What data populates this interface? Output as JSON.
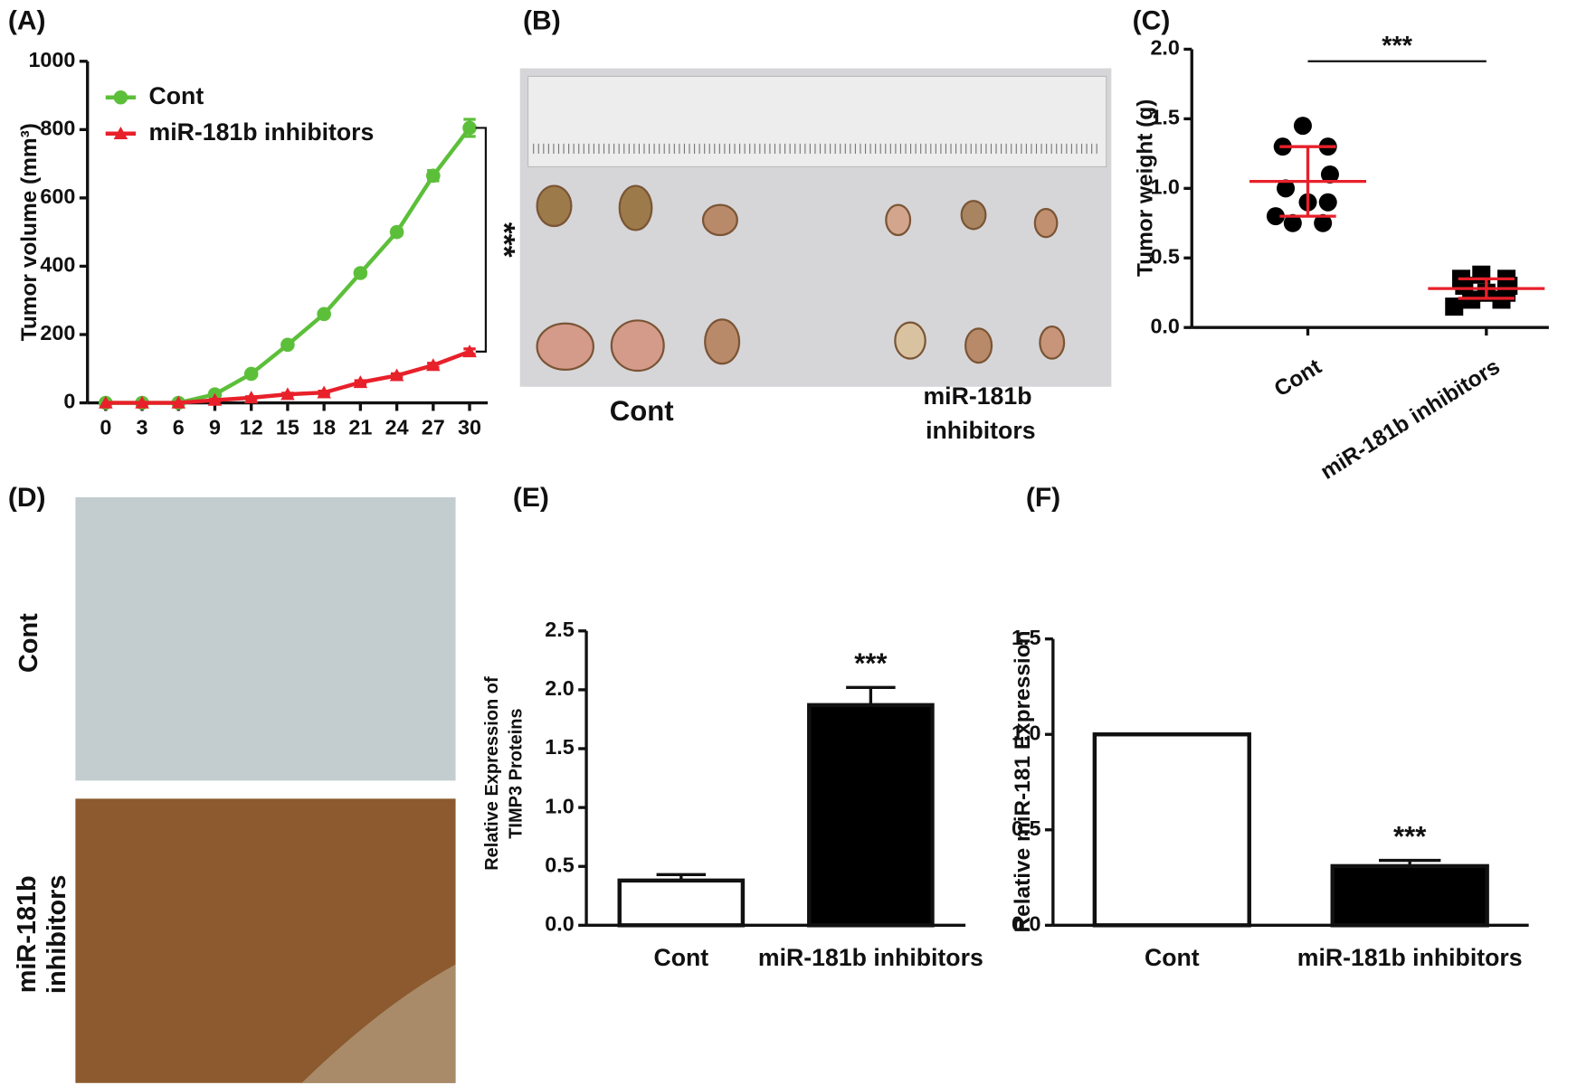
{
  "chart_data": [
    {
      "panel": "(A)",
      "type": "line",
      "y_label": "Tumor volume (mm³)",
      "x": [
        0,
        3,
        6,
        9,
        12,
        15,
        18,
        21,
        24,
        27,
        30
      ],
      "xlim": [
        -1.5,
        31.5
      ],
      "xticks": [
        0,
        3,
        6,
        9,
        12,
        15,
        18,
        21,
        24,
        27,
        30
      ],
      "ylim": [
        0,
        1000
      ],
      "yticks": [
        0,
        200,
        400,
        600,
        800,
        1000
      ],
      "legend": "upper left",
      "annotation": "***",
      "series": [
        {
          "name": "Cont",
          "color": "#5cbf3a",
          "marker": "circle",
          "values": [
            0,
            0,
            0,
            25,
            85,
            170,
            260,
            380,
            500,
            665,
            805
          ],
          "errors": [
            0,
            0,
            0,
            3,
            5,
            5,
            6,
            8,
            8,
            15,
            25
          ]
        },
        {
          "name": "miR-181b inhibitors",
          "color": "#e8202a",
          "marker": "triangle",
          "values": [
            0,
            0,
            0,
            8,
            15,
            25,
            30,
            60,
            80,
            110,
            150
          ],
          "errors": [
            0,
            0,
            0,
            2,
            3,
            3,
            4,
            5,
            5,
            6,
            8
          ]
        }
      ]
    },
    {
      "panel": "(C)",
      "type": "dot",
      "y_label": "Tumor weight (g)",
      "categories": [
        "Cont",
        "miR-181b inhibitors"
      ],
      "ylim": [
        0,
        2
      ],
      "yticks": [
        {
          "value": 0,
          "label": "0.0"
        },
        0.5,
        {
          "value": 1,
          "label": "1.0"
        },
        1.5,
        {
          "value": 2,
          "label": "2.0"
        }
      ],
      "points": [
        [
          1.45,
          1.3,
          1.3,
          1.1,
          1.0,
          0.9,
          0.9,
          0.75,
          0.75,
          0.8
        ],
        [
          0.38,
          0.35,
          0.35,
          0.3,
          0.3,
          0.25,
          0.25,
          0.2,
          0.2,
          0.15
        ]
      ],
      "markers": [
        "circle",
        "square"
      ],
      "point_color": "#000000",
      "means": [
        1.05,
        0.28
      ],
      "sd": [
        0.25,
        0.07
      ],
      "summary_color": "#e8202a",
      "annotation": "***"
    },
    {
      "panel": "(E)",
      "type": "bar",
      "y_label": [
        "Relative Expression of",
        "TIMP3 Proteins"
      ],
      "categories": [
        "Cont",
        "miR-181b inhibitors"
      ],
      "values": [
        0.38,
        1.87
      ],
      "errors": [
        0.05,
        0.15
      ],
      "colors": [
        "#ffffff",
        "#000000"
      ],
      "ylim": [
        0,
        2.5
      ],
      "yticks": [
        {
          "value": 0,
          "label": "0.0"
        },
        0.5,
        {
          "value": 1,
          "label": "1.0"
        },
        1.5,
        {
          "value": 2,
          "label": "2.0"
        },
        2.5
      ],
      "annotation": "***"
    },
    {
      "panel": "(F)",
      "type": "bar",
      "y_label": "Relative miR-181 Expression",
      "categories": [
        "Cont",
        "miR-181b inhibitors"
      ],
      "values": [
        1.0,
        0.31
      ],
      "errors": [
        0,
        0.03
      ],
      "colors": [
        "#ffffff",
        "#000000"
      ],
      "ylim": [
        0,
        1.5
      ],
      "yticks": [
        {
          "value": 0,
          "label": "0.0"
        },
        0.5,
        {
          "value": 1,
          "label": "1.0"
        },
        1.5
      ],
      "annotation": "***"
    }
  ],
  "photos": [
    {
      "panel": "(B)",
      "labels": [
        "Cont",
        "miR-181b",
        "inhibitors"
      ]
    },
    {
      "panel": "(D)",
      "labels": [
        "Cont",
        "miR-181b",
        "inhibitors"
      ]
    }
  ]
}
